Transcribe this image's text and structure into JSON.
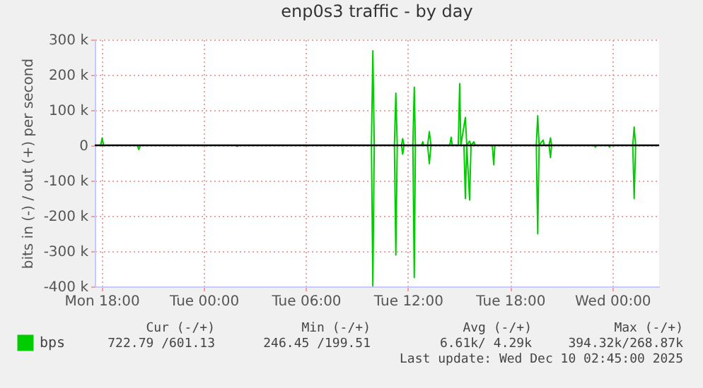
{
  "chart_data": {
    "type": "line",
    "title": "enp0s3 traffic - by day",
    "ylabel": "bits in (-) / out (+) per second",
    "series": [
      {
        "name": "bps",
        "color": "#00cc00",
        "x": [
          "2025-12-08T17:36",
          "2025-12-08T17:57",
          "2025-12-08T18:02",
          "2025-12-08T18:07",
          "2025-12-09T09:51",
          "2025-12-09T09:56",
          "2025-12-09T10:01",
          "2025-12-09T11:12",
          "2025-12-09T11:17",
          "2025-12-09T11:22",
          "2025-12-09T11:37",
          "2025-12-09T11:41",
          "2025-12-09T11:46",
          "2025-12-09T12:17",
          "2025-12-09T12:22",
          "2025-12-09T12:26",
          "2025-12-09T12:48",
          "2025-12-09T12:52",
          "2025-12-09T12:55",
          "2025-12-09T13:09",
          "2025-12-09T13:15",
          "2025-12-09T13:21",
          "2025-12-09T14:27",
          "2025-12-09T14:32",
          "2025-12-09T14:36",
          "2025-12-09T14:57",
          "2025-12-09T15:02",
          "2025-12-09T15:06",
          "2025-12-09T15:22",
          "2025-12-09T15:27",
          "2025-12-09T15:37",
          "2025-12-09T15:42",
          "2025-12-09T15:52",
          "2025-12-09T15:57",
          "2025-12-09T19:32",
          "2025-12-09T19:37",
          "2025-12-09T19:42",
          "2025-12-09T19:56",
          "2025-12-09T20:00",
          "2025-12-09T20:17",
          "2025-12-09T20:22",
          "2025-12-09T20:26",
          "2025-12-10T01:12",
          "2025-12-10T01:17",
          "2025-12-10T01:22",
          "2025-12-10T02:45"
        ],
        "values": [
          0,
          0,
          21000,
          0,
          0,
          268000,
          0,
          0,
          148000,
          0,
          0,
          19000,
          0,
          0,
          165000,
          0,
          0,
          10000,
          0,
          0,
          39000,
          0,
          0,
          23000,
          0,
          0,
          175000,
          0,
          79000,
          0,
          12000,
          0,
          10000,
          0,
          0,
          84000,
          0,
          15000,
          0,
          0,
          21000,
          0,
          0,
          52000,
          0,
          0
        ]
      },
      {
        "color": "#00cc00",
        "x": [
          "2025-12-08T17:36",
          "2025-12-08T20:06",
          "2025-12-08T20:11",
          "2025-12-08T20:17",
          "2025-12-09T01:54",
          "2025-12-09T01:58",
          "2025-12-09T02:03",
          "2025-12-09T09:51",
          "2025-12-09T09:56",
          "2025-12-09T10:01",
          "2025-12-09T11:12",
          "2025-12-09T11:17",
          "2025-12-09T11:22",
          "2025-12-09T11:37",
          "2025-12-09T11:41",
          "2025-12-09T11:46",
          "2025-12-09T12:17",
          "2025-12-09T12:22",
          "2025-12-09T12:26",
          "2025-12-09T13:09",
          "2025-12-09T13:15",
          "2025-12-09T13:21",
          "2025-12-09T15:17",
          "2025-12-09T15:22",
          "2025-12-09T15:27",
          "2025-12-09T15:37",
          "2025-12-09T15:42",
          "2025-12-09T16:57",
          "2025-12-09T17:02",
          "2025-12-09T17:06",
          "2025-12-09T19:32",
          "2025-12-09T19:37",
          "2025-12-09T19:42",
          "2025-12-09T20:17",
          "2025-12-09T20:22",
          "2025-12-09T20:26",
          "2025-12-09T22:57",
          "2025-12-09T23:00",
          "2025-12-09T23:03",
          "2025-12-09T23:47",
          "2025-12-09T23:50",
          "2025-12-09T23:53",
          "2025-12-10T01:12",
          "2025-12-10T01:17",
          "2025-12-10T01:22",
          "2025-12-10T02:45"
        ],
        "values": [
          0,
          0,
          -12000,
          0,
          0,
          -3000,
          0,
          0,
          -399000,
          0,
          0,
          -311000,
          0,
          0,
          -25000,
          0,
          0,
          -375000,
          0,
          0,
          -52000,
          0,
          0,
          -151000,
          0,
          -155000,
          0,
          0,
          -55000,
          0,
          0,
          -251000,
          0,
          0,
          -35000,
          0,
          0,
          -5000,
          0,
          0,
          -5000,
          0,
          0,
          -151000,
          0,
          0
        ]
      }
    ],
    "xlim": [
      "2025-12-08T17:36",
      "2025-12-10T02:45"
    ],
    "xticks": [
      {
        "value": "2025-12-08T18:00",
        "label": "Mon 18:00"
      },
      {
        "value": "2025-12-09T00:00",
        "label": "Tue 00:00"
      },
      {
        "value": "2025-12-09T06:00",
        "label": "Tue 06:00"
      },
      {
        "value": "2025-12-09T12:00",
        "label": "Tue 12:00"
      },
      {
        "value": "2025-12-09T18:00",
        "label": "Tue 18:00"
      },
      {
        "value": "2025-12-10T00:00",
        "label": "Wed 00:00"
      }
    ],
    "ylim": [
      -400000,
      300000
    ],
    "yticks": [
      {
        "value": -400000,
        "label": "-400 k"
      },
      {
        "value": -300000,
        "label": "-300 k"
      },
      {
        "value": -200000,
        "label": "-200 k"
      },
      {
        "value": -100000,
        "label": "-100 k"
      },
      0,
      {
        "value": 100000,
        "label": "100 k"
      },
      {
        "value": 200000,
        "label": "200 k"
      },
      {
        "value": 300000,
        "label": "300 k"
      }
    ],
    "ref_lines": [
      {
        "axis": "y",
        "value": 0,
        "color": "#000000"
      }
    ],
    "grid": true,
    "legend": "bottom left",
    "annotations": [
      "Cur (-/+)",
      "Min (-/+)",
      "Avg (-/+)",
      "Max (-/+)",
      "722.79 /601.13",
      "246.45 /199.51",
      "6.61k/  4.29k",
      "394.32k/268.87k",
      "Last update: Wed Dec 10 02:45:00 2025"
    ]
  }
}
